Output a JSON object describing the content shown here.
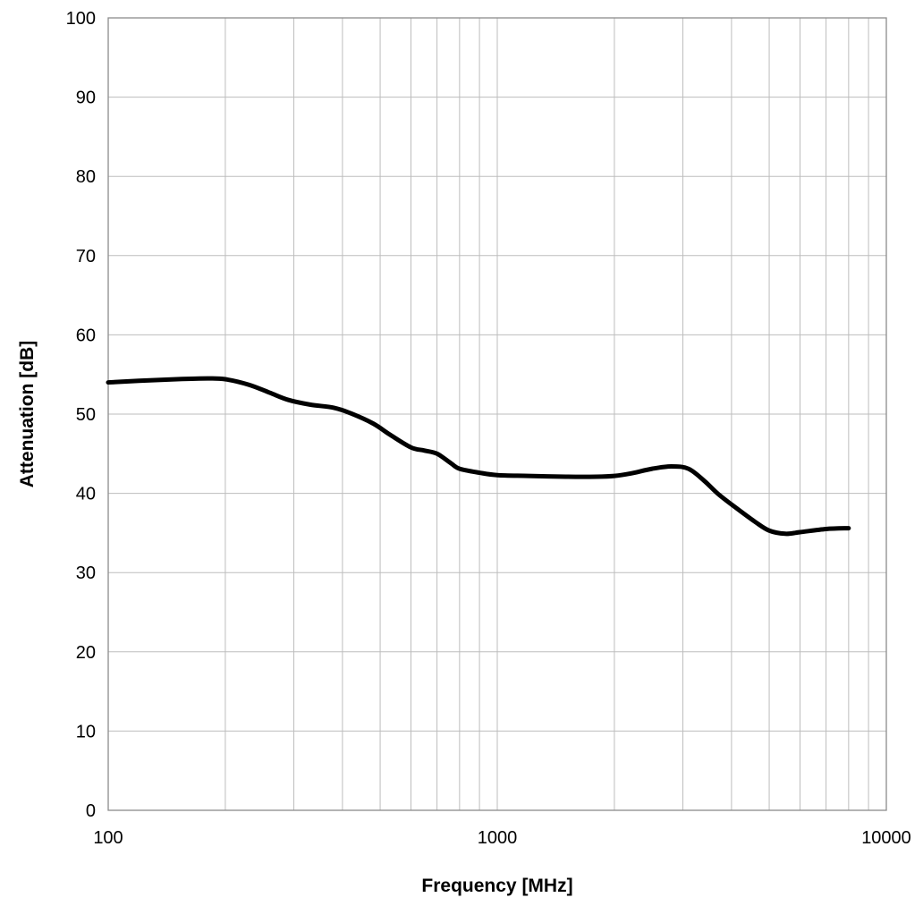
{
  "chart_data": {
    "type": "line",
    "xlabel": "Frequency [MHz]",
    "ylabel": "Attenuation [dB]",
    "xscale": "log",
    "xlim": [
      100,
      10000
    ],
    "ylim": [
      0,
      100
    ],
    "x_ticks": [
      "100",
      "1000",
      "10000"
    ],
    "y_ticks": [
      "0",
      "10",
      "20",
      "30",
      "40",
      "50",
      "60",
      "70",
      "80",
      "90",
      "100"
    ],
    "grid": true,
    "series": [
      {
        "color": "#000000",
        "points": [
          [
            100,
            54.0
          ],
          [
            120,
            54.2
          ],
          [
            150,
            54.4
          ],
          [
            180,
            54.5
          ],
          [
            200,
            54.4
          ],
          [
            230,
            53.7
          ],
          [
            260,
            52.7
          ],
          [
            290,
            51.8
          ],
          [
            330,
            51.2
          ],
          [
            380,
            50.8
          ],
          [
            420,
            50.1
          ],
          [
            480,
            48.8
          ],
          [
            530,
            47.4
          ],
          [
            600,
            45.8
          ],
          [
            650,
            45.4
          ],
          [
            700,
            45.0
          ],
          [
            760,
            43.8
          ],
          [
            800,
            43.1
          ],
          [
            900,
            42.6
          ],
          [
            1000,
            42.3
          ],
          [
            1200,
            42.2
          ],
          [
            1500,
            42.1
          ],
          [
            1800,
            42.1
          ],
          [
            2000,
            42.2
          ],
          [
            2200,
            42.5
          ],
          [
            2500,
            43.1
          ],
          [
            2800,
            43.4
          ],
          [
            3100,
            43.1
          ],
          [
            3400,
            41.6
          ],
          [
            3700,
            39.9
          ],
          [
            4100,
            38.2
          ],
          [
            4600,
            36.4
          ],
          [
            5000,
            35.3
          ],
          [
            5500,
            34.9
          ],
          [
            6000,
            35.1
          ],
          [
            7000,
            35.5
          ],
          [
            8000,
            35.6
          ]
        ]
      }
    ]
  }
}
